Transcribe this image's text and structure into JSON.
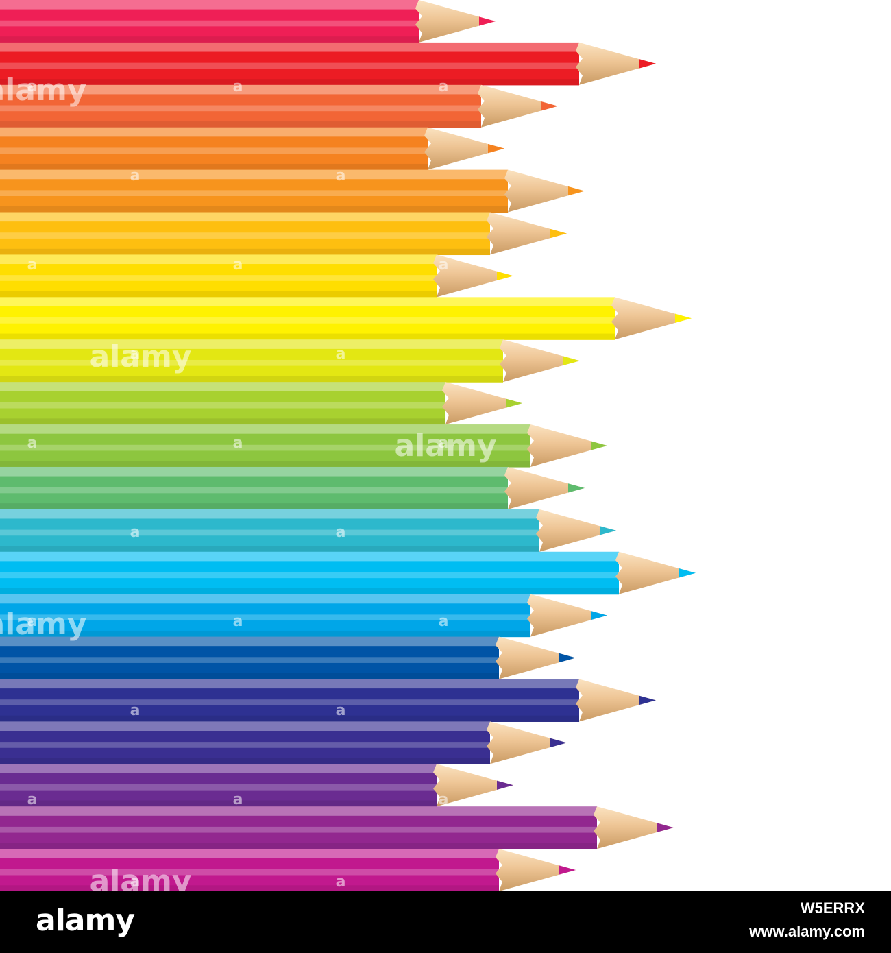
{
  "image": {
    "subject": "pencils",
    "background_color": "#ffffff",
    "pencils": [
      {
        "color": "#ef1f56",
        "length": 0.47
      },
      {
        "color": "#ec1c24",
        "length": 0.65
      },
      {
        "color": "#f26536",
        "length": 0.54
      },
      {
        "color": "#f58220",
        "length": 0.48
      },
      {
        "color": "#f7941d",
        "length": 0.57
      },
      {
        "color": "#febf10",
        "length": 0.55
      },
      {
        "color": "#ffde00",
        "length": 0.49
      },
      {
        "color": "#fff200",
        "length": 0.69
      },
      {
        "color": "#e3e713",
        "length": 0.565
      },
      {
        "color": "#a8d130",
        "length": 0.5
      },
      {
        "color": "#8dc63f",
        "length": 0.595
      },
      {
        "color": "#5ebb6e",
        "length": 0.57
      },
      {
        "color": "#2db8cc",
        "length": 0.605
      },
      {
        "color": "#00bdf2",
        "length": 0.695
      },
      {
        "color": "#00a6e8",
        "length": 0.595
      },
      {
        "color": "#0054a6",
        "length": 0.56
      },
      {
        "color": "#2e3192",
        "length": 0.65
      },
      {
        "color": "#3a2f91",
        "length": 0.55
      },
      {
        "color": "#6a2c91",
        "length": 0.49
      },
      {
        "color": "#92278f",
        "length": 0.67
      },
      {
        "color": "#c1198e",
        "length": 0.56
      }
    ]
  },
  "watermark": {
    "text": "alamy",
    "small_mark": "a"
  },
  "footer": {
    "logo": "alamy",
    "image_id": "W5ERRX",
    "site": "www.alamy.com",
    "background_color": "#000000"
  }
}
